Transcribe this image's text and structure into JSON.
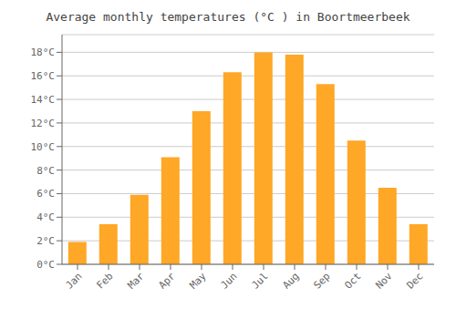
{
  "chart_data": {
    "type": "bar",
    "title": "Average monthly temperatures (°C ) in Boortmeerbeek",
    "categories": [
      "Jan",
      "Feb",
      "Mar",
      "Apr",
      "May",
      "Jun",
      "Jul",
      "Aug",
      "Sep",
      "Oct",
      "Nov",
      "Dec"
    ],
    "values": [
      1.9,
      3.4,
      5.9,
      9.1,
      13.0,
      16.3,
      18.0,
      17.8,
      15.3,
      10.5,
      6.5,
      3.4
    ],
    "color": "#FFA726",
    "ylim": [
      0,
      19.5
    ],
    "yticks": [
      {
        "value": 0,
        "label": "0°C"
      },
      {
        "value": 2,
        "label": "2°C"
      },
      {
        "value": 4,
        "label": "4°C"
      },
      {
        "value": 6,
        "label": "6°C"
      },
      {
        "value": 8,
        "label": "8°C"
      },
      {
        "value": 10,
        "label": "10°C"
      },
      {
        "value": 12,
        "label": "12°C"
      },
      {
        "value": 14,
        "label": "14°C"
      },
      {
        "value": 16,
        "label": "16°C"
      },
      {
        "value": 18,
        "label": "18°C"
      }
    ],
    "grid": true
  }
}
